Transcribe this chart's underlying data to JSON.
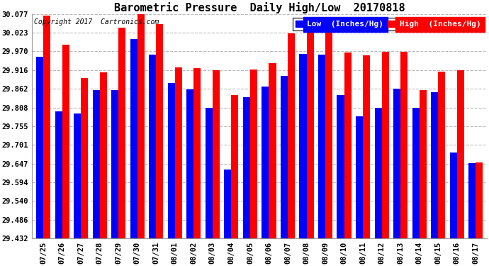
{
  "title": "Barometric Pressure  Daily High/Low  20170818",
  "copyright": "Copyright 2017  Cartronics.com",
  "legend_low": "Low  (Inches/Hg)",
  "legend_high": "High  (Inches/Hg)",
  "categories": [
    "07/25",
    "07/26",
    "07/27",
    "07/28",
    "07/29",
    "07/30",
    "07/31",
    "08/01",
    "08/02",
    "08/03",
    "08/04",
    "08/05",
    "08/06",
    "08/07",
    "08/08",
    "08/09",
    "08/10",
    "08/11",
    "08/12",
    "08/13",
    "08/14",
    "08/15",
    "08/16",
    "08/17"
  ],
  "low_values": [
    29.955,
    29.797,
    29.791,
    29.858,
    29.858,
    30.005,
    29.96,
    29.878,
    29.86,
    29.808,
    29.63,
    29.839,
    29.868,
    29.9,
    29.962,
    29.96,
    29.845,
    29.783,
    29.807,
    29.862,
    29.808,
    29.852,
    29.68,
    29.648
  ],
  "high_values": [
    30.073,
    29.99,
    29.893,
    29.909,
    30.038,
    30.077,
    30.048,
    29.924,
    29.922,
    29.916,
    29.845,
    29.918,
    29.937,
    30.022,
    30.053,
    30.056,
    29.967,
    29.958,
    29.968,
    29.968,
    29.858,
    29.912,
    29.916,
    29.651
  ],
  "low_color": "#0000ff",
  "high_color": "#ff0000",
  "bg_color": "#ffffff",
  "grid_color": "#bbbbbb",
  "ymin": 29.432,
  "ymax": 30.077,
  "yticks": [
    29.432,
    29.486,
    29.54,
    29.594,
    29.647,
    29.701,
    29.755,
    29.808,
    29.862,
    29.916,
    29.97,
    30.023,
    30.077
  ],
  "title_fontsize": 11,
  "copyright_fontsize": 7,
  "legend_fontsize": 8,
  "tick_fontsize": 7.5,
  "bar_width": 0.38
}
